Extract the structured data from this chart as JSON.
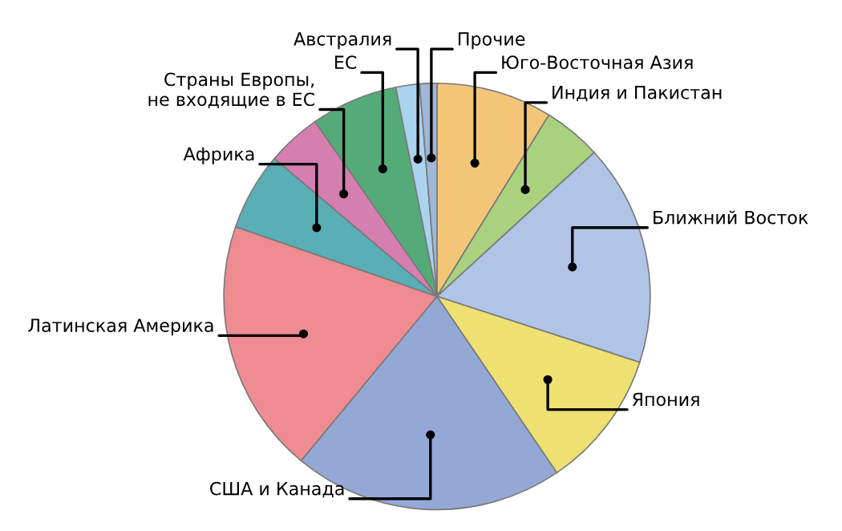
{
  "chart_data": {
    "type": "pie",
    "categories": [
      "Юго-Восточная Азия",
      "Индия и Пакистан",
      "Ближний Восток",
      "Япония",
      "США и Канада",
      "Латинская Америка",
      "Африка",
      "Страны Европы,\nне входящие в ЕС",
      "ЕС",
      "Австралия",
      "Прочие"
    ],
    "values": [
      8.8,
      4.4,
      16.8,
      10.5,
      20.5,
      19.3,
      5.9,
      4.1,
      6.6,
      1.8,
      1.3
    ],
    "colors": [
      "#f3c677",
      "#a9d17e",
      "#b0c4e6",
      "#eee071",
      "#94a8d6",
      "#ee8c91",
      "#5aaeb5",
      "#d47fb0",
      "#55ab78",
      "#a9d3ef",
      "#9fb7d9"
    ]
  }
}
